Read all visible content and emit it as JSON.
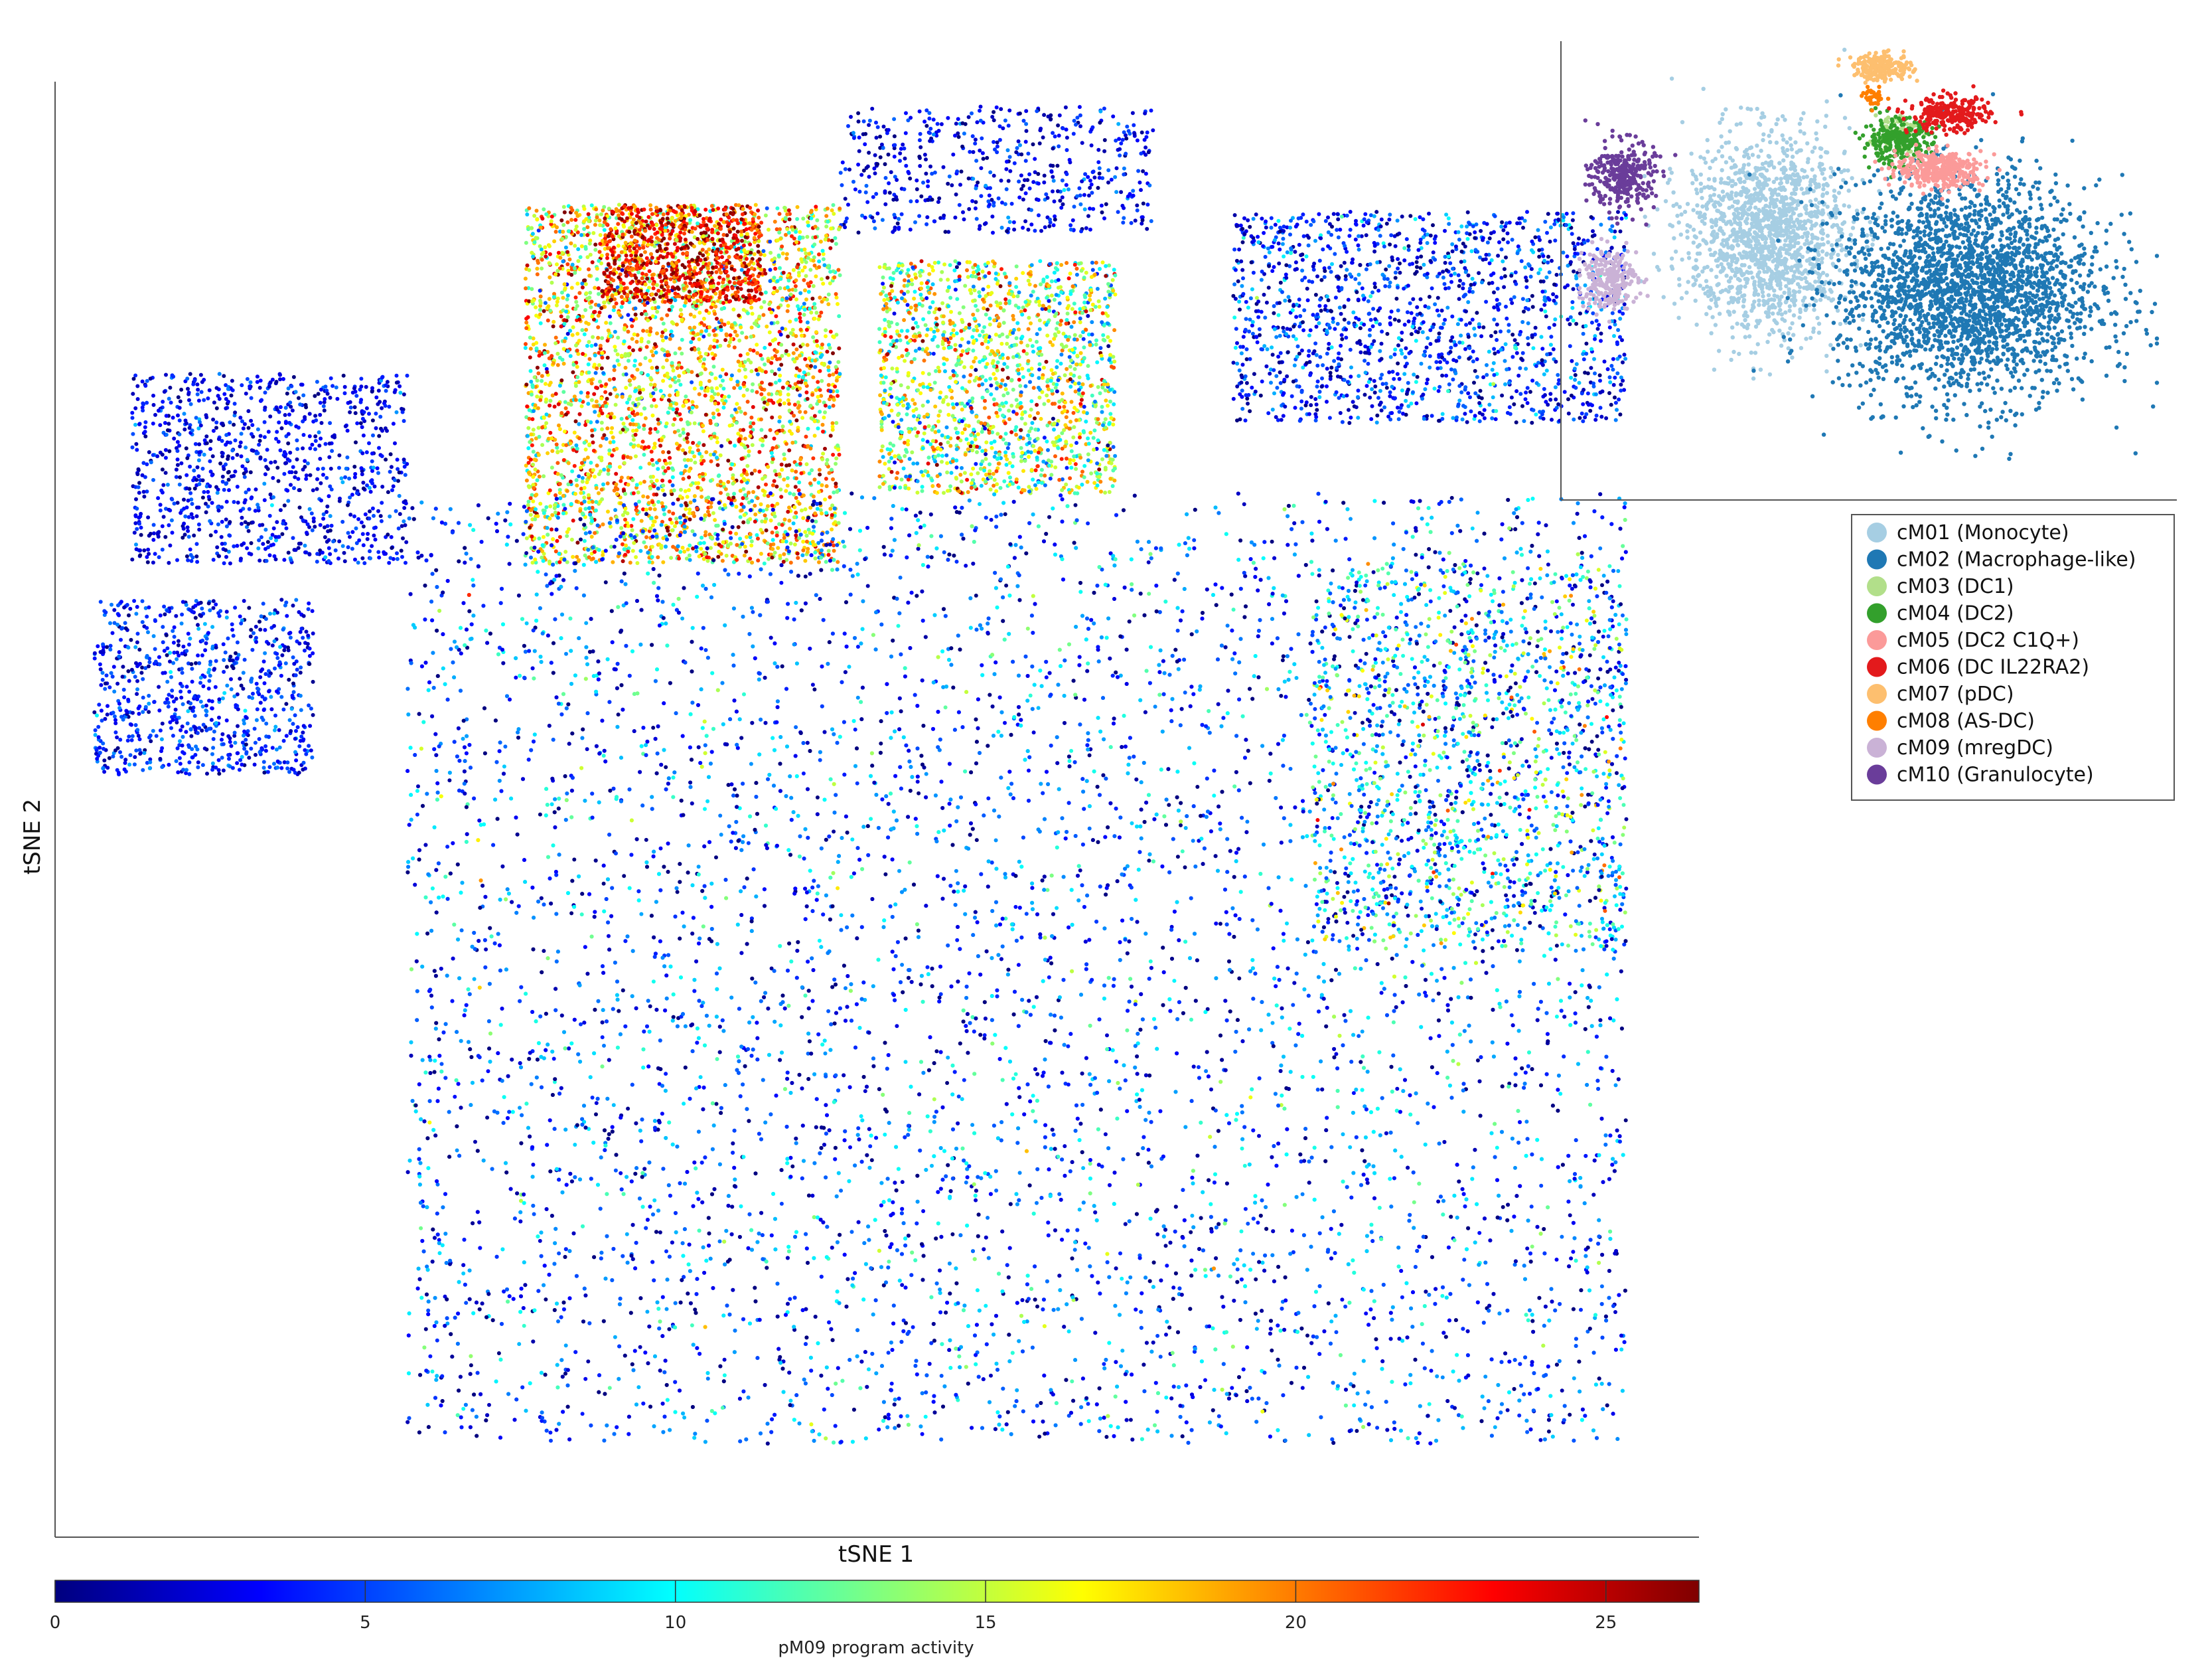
{
  "chart_data": [
    {
      "type": "scatter",
      "title": "",
      "xlabel": "tSNE 1",
      "ylabel": "tSNE 2",
      "color_by": "pM09 program activity",
      "colormap": "jet",
      "color_range": [
        0,
        26.5
      ],
      "grid": false,
      "regions": [
        {
          "x": [
            -0.05,
            0.35
          ],
          "y": [
            0.82,
            1.0
          ],
          "density": 600,
          "activity_mean": 3,
          "activity_spread": 2
        },
        {
          "x": [
            -0.45,
            -0.05
          ],
          "y": [
            0.35,
            0.86
          ],
          "density": 3600,
          "activity_mean": 17,
          "activity_spread": 5
        },
        {
          "x": [
            -0.35,
            -0.15
          ],
          "y": [
            0.72,
            0.86
          ],
          "density": 900,
          "activity_mean": 23,
          "activity_spread": 3
        },
        {
          "x": [
            0.0,
            0.3
          ],
          "y": [
            0.45,
            0.78
          ],
          "density": 1800,
          "activity_mean": 14,
          "activity_spread": 5
        },
        {
          "x": [
            0.45,
            0.95
          ],
          "y": [
            0.55,
            0.85
          ],
          "density": 1700,
          "activity_mean": 4,
          "activity_spread": 3
        },
        {
          "x": [
            -0.95,
            -0.6
          ],
          "y": [
            0.35,
            0.62
          ],
          "density": 1100,
          "activity_mean": 3,
          "activity_spread": 2
        },
        {
          "x": [
            -1.0,
            -0.72
          ],
          "y": [
            0.05,
            0.3
          ],
          "density": 900,
          "activity_mean": 4,
          "activity_spread": 2
        },
        {
          "x": [
            -0.6,
            0.95
          ],
          "y": [
            -0.9,
            0.45
          ],
          "density": 11000,
          "activity_mean": 5,
          "activity_spread": 4
        },
        {
          "x": [
            0.55,
            0.95
          ],
          "y": [
            -0.2,
            0.35
          ],
          "density": 1500,
          "activity_mean": 9,
          "activity_spread": 5
        }
      ]
    },
    {
      "type": "scatter",
      "title": "",
      "xlabel": "",
      "ylabel": "",
      "role": "inset",
      "color_by": "cluster",
      "clusters": [
        {
          "name": "cM01 (Monocyte)",
          "color": "#a6cee3",
          "center": [
            -0.35,
            0.15
          ],
          "spread": [
            0.28,
            0.45
          ],
          "count": 2600
        },
        {
          "name": "cM02 (Macrophage-like)",
          "color": "#1f78b4",
          "center": [
            0.35,
            -0.1
          ],
          "spread": [
            0.45,
            0.5
          ],
          "count": 4200
        },
        {
          "name": "cM03 (DC1)",
          "color": "#b2df8a",
          "center": [
            0.1,
            0.62
          ],
          "spread": [
            0.08,
            0.1
          ],
          "count": 120
        },
        {
          "name": "cM04 (DC2)",
          "color": "#33a02c",
          "center": [
            0.1,
            0.58
          ],
          "spread": [
            0.12,
            0.1
          ],
          "count": 450
        },
        {
          "name": "cM05 (DC2 C1Q+)",
          "color": "#fb9a99",
          "center": [
            0.25,
            0.45
          ],
          "spread": [
            0.15,
            0.08
          ],
          "count": 650
        },
        {
          "name": "cM06 (DC IL22RA2)",
          "color": "#e31a1c",
          "center": [
            0.28,
            0.7
          ],
          "spread": [
            0.14,
            0.08
          ],
          "count": 450
        },
        {
          "name": "cM07 (pDC)",
          "color": "#fdbf6f",
          "center": [
            0.05,
            0.92
          ],
          "spread": [
            0.1,
            0.06
          ],
          "count": 380
        },
        {
          "name": "cM08 (AS-DC)",
          "color": "#ff7f00",
          "center": [
            0.02,
            0.78
          ],
          "spread": [
            0.04,
            0.04
          ],
          "count": 60
        },
        {
          "name": "cM09 (mregDC)",
          "color": "#cab2d6",
          "center": [
            -0.9,
            -0.05
          ],
          "spread": [
            0.1,
            0.14
          ],
          "count": 450
        },
        {
          "name": "cM10 (Granulocyte)",
          "color": "#6a3d9a",
          "center": [
            -0.85,
            0.42
          ],
          "spread": [
            0.11,
            0.16
          ],
          "count": 500
        }
      ]
    }
  ],
  "colorbar": {
    "label": "pM09 program activity",
    "ticks": [
      0,
      5,
      10,
      15,
      20,
      25
    ],
    "range": [
      0,
      26.5
    ]
  }
}
